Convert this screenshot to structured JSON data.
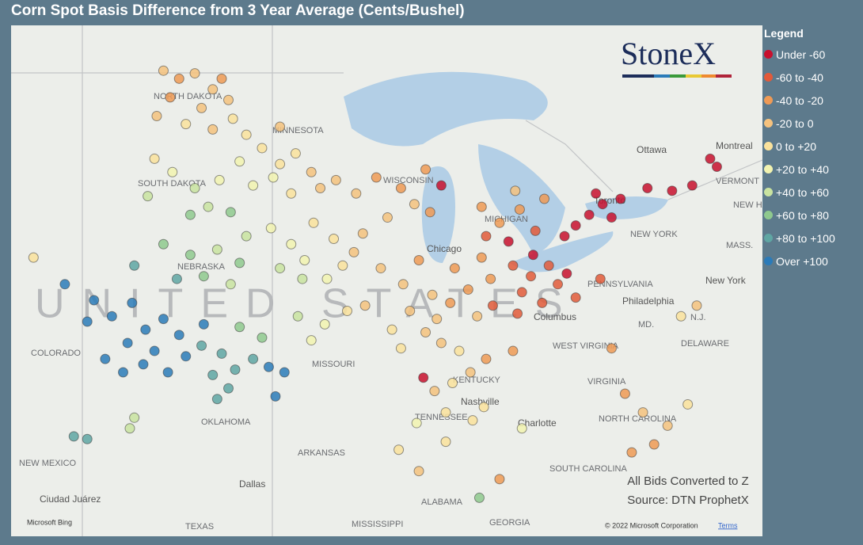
{
  "title": "Corn Spot Basis Difference from 3 Year Average (Cents/Bushel)",
  "legend": {
    "title": "Legend",
    "items": [
      {
        "label": "Under -60",
        "color": "#c8102e"
      },
      {
        "label": "-60 to -40",
        "color": "#e25a3a"
      },
      {
        "label": "-40 to -20",
        "color": "#ef9a55"
      },
      {
        "label": "-20 to 0",
        "color": "#f5c27e"
      },
      {
        "label": "0 to +20",
        "color": "#fae29c"
      },
      {
        "label": "+20 to +40",
        "color": "#f2f3b0"
      },
      {
        "label": "+40 to +60",
        "color": "#c9e3a0"
      },
      {
        "label": "+60 to +80",
        "color": "#8fc98e"
      },
      {
        "label": "+80 to +100",
        "color": "#5fa6a3"
      },
      {
        "label": "Over +100",
        "color": "#2b7bb9"
      }
    ]
  },
  "logo": "StoneX",
  "notes": [
    "All Bids Converted to Z",
    "Source: DTN ProphetX"
  ],
  "copyright": "© 2022 Microsoft Corporation",
  "terms": "Terms",
  "bing": "Microsoft Bing",
  "country_label": "UNITED STATES",
  "places": [
    "NORTH DAKOTA",
    "MINNESOTA",
    "SOUTH DAKOTA",
    "WISCONSIN",
    "MICHIGAN",
    "NEBRASKA",
    "COLORADO",
    "MISSOURI",
    "Chicago",
    "KENTUCKY",
    "TENNESSEE",
    "Nashville",
    "OKLAHOMA",
    "ARKANSAS",
    "NEW MEXICO",
    "TEXAS",
    "Dallas",
    "Ciudad Juárez",
    "MISSISSIPPI",
    "ALABAMA",
    "GEORGIA",
    "SOUTH CAROLINA",
    "NORTH CAROLINA",
    "Charlotte",
    "VIRGINIA",
    "WEST VIRGINIA",
    "Columbus",
    "PENNSYLVANIA",
    "Philadelphia",
    "NEW YORK",
    "New York",
    "N.J.",
    "MD.",
    "DELAWARE",
    "MASS.",
    "VERMONT",
    "NEW HAMPSHIRE",
    "Ottawa",
    "Montreal",
    "Toronto"
  ],
  "points": [
    [
      -100.2,
      48.6,
      3
    ],
    [
      -99.5,
      48.3,
      2
    ],
    [
      -98.8,
      48.5,
      3
    ],
    [
      -98,
      47.9,
      3
    ],
    [
      -99.9,
      47.6,
      2
    ],
    [
      -98.5,
      47.2,
      3
    ],
    [
      -97.6,
      48.3,
      2
    ],
    [
      -97.3,
      47.5,
      3
    ],
    [
      -100.5,
      46.9,
      3
    ],
    [
      -99.2,
      46.6,
      4
    ],
    [
      -98,
      46.4,
      3
    ],
    [
      -97.1,
      46.8,
      4
    ],
    [
      -96.5,
      46.2,
      4
    ],
    [
      -95.8,
      45.7,
      4
    ],
    [
      -95,
      46.5,
      3
    ],
    [
      -94.3,
      45.5,
      4
    ],
    [
      -93.6,
      44.8,
      3
    ],
    [
      -95.3,
      44.6,
      5
    ],
    [
      -96.2,
      44.3,
      5
    ],
    [
      -94.5,
      44,
      4
    ],
    [
      -93.2,
      44.2,
      3
    ],
    [
      -92.5,
      44.5,
      3
    ],
    [
      -95,
      45.1,
      4
    ],
    [
      -96.8,
      45.2,
      5
    ],
    [
      -99.8,
      44.8,
      5
    ],
    [
      -98.8,
      44.2,
      6
    ],
    [
      -97.7,
      44.5,
      5
    ],
    [
      -100.6,
      45.3,
      4
    ],
    [
      -98.2,
      43.5,
      6
    ],
    [
      -97.2,
      43.3,
      7
    ],
    [
      -99,
      43.2,
      7
    ],
    [
      -100.9,
      43.9,
      6
    ],
    [
      -100.2,
      42.1,
      7
    ],
    [
      -99,
      41.7,
      7
    ],
    [
      -97.8,
      41.9,
      6
    ],
    [
      -96.8,
      41.4,
      7
    ],
    [
      -98.4,
      40.9,
      7
    ],
    [
      -97.2,
      40.6,
      6
    ],
    [
      -99.6,
      40.8,
      8
    ],
    [
      -96.5,
      42.4,
      6
    ],
    [
      -101.5,
      41.3,
      8
    ],
    [
      -103.3,
      40,
      9
    ],
    [
      -102.5,
      39.4,
      9
    ],
    [
      -101.6,
      39.9,
      9
    ],
    [
      -101,
      38.9,
      9
    ],
    [
      -100.2,
      39.3,
      9
    ],
    [
      -99.5,
      38.7,
      9
    ],
    [
      -100.6,
      38.1,
      9
    ],
    [
      -101.8,
      38.4,
      9
    ],
    [
      -102.8,
      37.8,
      9
    ],
    [
      -99.2,
      37.9,
      9
    ],
    [
      -98.4,
      39.1,
      9
    ],
    [
      -102,
      37.3,
      9
    ],
    [
      -101.1,
      37.6,
      9
    ],
    [
      -103.6,
      39.2,
      9
    ],
    [
      -100,
      37.3,
      9
    ],
    [
      -98.5,
      38.3,
      8
    ],
    [
      -97.6,
      38,
      8
    ],
    [
      -97,
      37.4,
      8
    ],
    [
      -98,
      37.2,
      8
    ],
    [
      -97.3,
      36.7,
      8
    ],
    [
      -96.2,
      37.8,
      8
    ],
    [
      -95.8,
      38.6,
      7
    ],
    [
      -96.8,
      39,
      7
    ],
    [
      -97.8,
      36.3,
      8
    ],
    [
      -95.5,
      37.5,
      9
    ],
    [
      -94.8,
      37.3,
      9
    ],
    [
      -95.4,
      42.7,
      5
    ],
    [
      -94.5,
      42.1,
      5
    ],
    [
      -93.5,
      42.9,
      4
    ],
    [
      -92.6,
      42.3,
      4
    ],
    [
      -93.9,
      41.5,
      5
    ],
    [
      -95,
      41.2,
      6
    ],
    [
      -92.2,
      41.3,
      4
    ],
    [
      -91.3,
      42.5,
      3
    ],
    [
      -94,
      40.8,
      6
    ],
    [
      -92.9,
      40.8,
      5
    ],
    [
      -91.7,
      41.8,
      3
    ],
    [
      -94.2,
      39.4,
      6
    ],
    [
      -93,
      39.1,
      5
    ],
    [
      -92,
      39.6,
      4
    ],
    [
      -91.2,
      39.8,
      3
    ],
    [
      -93.6,
      38.5,
      5
    ],
    [
      -90.5,
      41.2,
      3
    ],
    [
      -89.5,
      40.6,
      3
    ],
    [
      -88.8,
      41.5,
      2
    ],
    [
      -88.2,
      40.2,
      3
    ],
    [
      -89.2,
      39.6,
      3
    ],
    [
      -90,
      38.9,
      4
    ],
    [
      -88.5,
      38.8,
      3
    ],
    [
      -87.4,
      39.9,
      2
    ],
    [
      -86.6,
      40.4,
      2
    ],
    [
      -86.2,
      39.4,
      3
    ],
    [
      -85.6,
      40.8,
      2
    ],
    [
      -87.2,
      41.2,
      2
    ],
    [
      -86,
      41.6,
      2
    ],
    [
      -87.8,
      38.4,
      3
    ],
    [
      -87,
      38.1,
      4
    ],
    [
      -89.6,
      38.2,
      4
    ],
    [
      -88,
      39.3,
      3
    ],
    [
      -85.5,
      39.8,
      1
    ],
    [
      -90.7,
      44.6,
      2
    ],
    [
      -89.6,
      44.2,
      2
    ],
    [
      -88.5,
      44.9,
      2
    ],
    [
      -89,
      43.6,
      3
    ],
    [
      -90.2,
      43.1,
      3
    ],
    [
      -88.3,
      43.3,
      2
    ],
    [
      -87.8,
      44.3,
      0
    ],
    [
      -91.6,
      44,
      3
    ],
    [
      -86,
      43.5,
      2
    ],
    [
      -85.2,
      42.9,
      2
    ],
    [
      -84.3,
      43.4,
      2
    ],
    [
      -83.6,
      42.6,
      1
    ],
    [
      -84.8,
      42.2,
      0
    ],
    [
      -85.8,
      42.4,
      1
    ],
    [
      -83.2,
      43.8,
      2
    ],
    [
      -84.5,
      44.1,
      3
    ],
    [
      -84.6,
      41.3,
      1
    ],
    [
      -83.8,
      40.9,
      1
    ],
    [
      -83,
      41.3,
      1
    ],
    [
      -84.2,
      40.3,
      1
    ],
    [
      -83.3,
      39.9,
      1
    ],
    [
      -82.6,
      40.6,
      1
    ],
    [
      -84.4,
      39.5,
      1
    ],
    [
      -82.2,
      41,
      0
    ],
    [
      -83.7,
      41.7,
      0
    ],
    [
      -81.8,
      40.1,
      1
    ],
    [
      -81.8,
      42.8,
      0
    ],
    [
      -81.2,
      43.2,
      0
    ],
    [
      -80.6,
      43.6,
      0
    ],
    [
      -80.2,
      43.1,
      0
    ],
    [
      -80.9,
      44,
      0
    ],
    [
      -79.8,
      43.8,
      0
    ],
    [
      -82.3,
      42.4,
      0
    ],
    [
      -78.6,
      44.2,
      0
    ],
    [
      -77.5,
      44.1,
      0
    ],
    [
      -76.6,
      44.3,
      0
    ],
    [
      -75.8,
      45.3,
      0
    ],
    [
      -75.5,
      45,
      0
    ],
    [
      -88.6,
      37.1,
      0
    ],
    [
      -88.1,
      36.6,
      3
    ],
    [
      -87.3,
      36.9,
      4
    ],
    [
      -86.5,
      37.3,
      3
    ],
    [
      -85.8,
      37.8,
      2
    ],
    [
      -87.6,
      35.8,
      4
    ],
    [
      -86.4,
      35.5,
      4
    ],
    [
      -88.9,
      35.4,
      5
    ],
    [
      -85.9,
      36,
      4
    ],
    [
      -84.6,
      38.1,
      2
    ],
    [
      -89.7,
      34.4,
      4
    ],
    [
      -88.8,
      33.6,
      3
    ],
    [
      -87.6,
      34.7,
      4
    ],
    [
      -85.2,
      33.3,
      2
    ],
    [
      -86.1,
      32.6,
      7
    ],
    [
      -84.2,
      35.2,
      5
    ],
    [
      -80.2,
      38.2,
      2
    ],
    [
      -79.6,
      36.5,
      2
    ],
    [
      -78.8,
      35.8,
      3
    ],
    [
      -77.7,
      35.3,
      3
    ],
    [
      -78.3,
      34.6,
      2
    ],
    [
      -79.3,
      34.3,
      2
    ],
    [
      -76.8,
      36.1,
      4
    ],
    [
      -77.1,
      39.4,
      4
    ],
    [
      -76.4,
      39.8,
      3
    ],
    [
      -80.7,
      40.8,
      1
    ],
    [
      -104.2,
      34.9,
      8
    ],
    [
      -103.6,
      34.8,
      8
    ],
    [
      -106,
      41.6,
      4
    ],
    [
      -104.6,
      40.6,
      9
    ],
    [
      -101.5,
      35.6,
      6
    ],
    [
      -101.7,
      35.2,
      6
    ],
    [
      -95.2,
      36.4,
      9
    ]
  ]
}
